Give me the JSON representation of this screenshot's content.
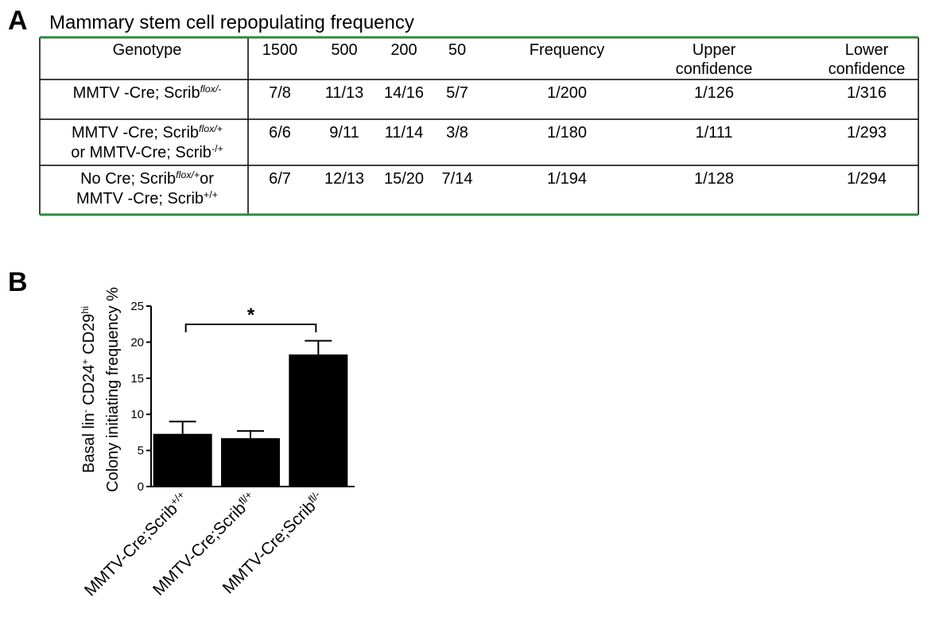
{
  "panel_a": {
    "label": "A",
    "title": "Mammary stem cell repopulating frequency",
    "table": {
      "header": [
        [
          "Genotype"
        ],
        [
          "1500"
        ],
        [
          "500"
        ],
        [
          "200"
        ],
        [
          "50"
        ],
        [
          "Frequency"
        ],
        [
          "Upper",
          "confidence"
        ],
        [
          "Lower",
          "confidence"
        ]
      ],
      "rows": [
        [
          [
            [
              "MMTV -Cre; Scrib",
              {
                "text": "flox/-",
                "style": "sup-italic"
              }
            ]
          ],
          "7/8",
          "11/13",
          "14/16",
          "5/7",
          "1/200",
          "1/126",
          "1/316"
        ],
        [
          [
            [
              "MMTV -Cre; Scrib",
              {
                "text": "flox/+",
                "style": "sup-italic"
              }
            ],
            [
              "or MMTV-Cre; Scrib",
              {
                "text": "-/+",
                "style": "sup"
              }
            ]
          ],
          "6/6",
          "9/11",
          "11/14",
          "3/8",
          "1/180",
          "1/111",
          "1/293"
        ],
        [
          [
            [
              "No Cre; Scrib",
              {
                "text": "flox/+",
                "style": "sup-italic"
              },
              "or"
            ],
            [
              "MMTV -Cre; Scrib",
              {
                "text": "+/+",
                "style": "sup"
              }
            ]
          ],
          "6/7",
          "12/13",
          "15/20",
          "7/14",
          "1/194",
          "1/128",
          "1/294"
        ]
      ]
    }
  },
  "chart_data": {
    "type": "bar",
    "panel_label": "B",
    "y_label": [
      [
        "Basal lin",
        {
          "text": "-",
          "style": "sup"
        },
        " CD24",
        {
          "text": "+",
          "style": "sup"
        },
        " CD29",
        {
          "text": "hi",
          "style": "sup"
        }
      ],
      [
        "Colony initiating frequency %"
      ]
    ],
    "categories": [
      [
        "MMTV-Cre;Scrib",
        {
          "text": "+/+",
          "style": "sup"
        }
      ],
      [
        "MMTV-Cre;Scrib",
        {
          "text": "fl/+",
          "style": "sup"
        }
      ],
      [
        "MMTV-Cre;Scrib",
        {
          "text": "fl/-",
          "style": "sup"
        }
      ]
    ],
    "values": [
      7.3,
      6.7,
      18.3
    ],
    "errors": [
      1.7,
      1.0,
      1.9
    ],
    "color": "#000000",
    "ylim": [
      0,
      25
    ],
    "yticks": [
      0,
      5,
      10,
      15,
      20,
      25
    ],
    "significance": {
      "from": 0,
      "to": 2,
      "label": "*"
    }
  }
}
